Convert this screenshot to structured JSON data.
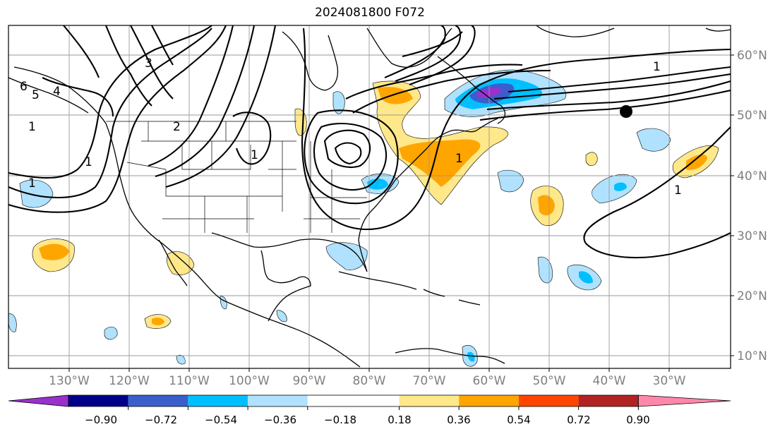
{
  "title": "2024081800 F072",
  "lon_labels": [
    "130°W",
    "120°W",
    "110°W",
    "100°W",
    "90°W",
    "80°W",
    "70°W",
    "60°W",
    "50°W",
    "40°W",
    "30°W"
  ],
  "lat_labels": [
    "60°N",
    "50°N",
    "40°N",
    "30°N",
    "20°N",
    "10°N"
  ],
  "colorbar": {
    "colors": [
      "#9932cc",
      "#00008b",
      "#3a5fcd",
      "#00bfff",
      "#b0e2ff",
      "#ffffff",
      "#ffe88a",
      "#ffa500",
      "#ff4500",
      "#b22222",
      "#ff88aa"
    ],
    "tick_labels": [
      "−0.90",
      "−0.72",
      "−0.54",
      "−0.36",
      "−0.18",
      "0.18",
      "0.36",
      "0.54",
      "0.72",
      "0.90"
    ]
  },
  "contour_labels": [
    "1",
    "1",
    "1",
    "1",
    "1",
    "1",
    "2",
    "3",
    "4",
    "5",
    "6",
    "1"
  ]
}
